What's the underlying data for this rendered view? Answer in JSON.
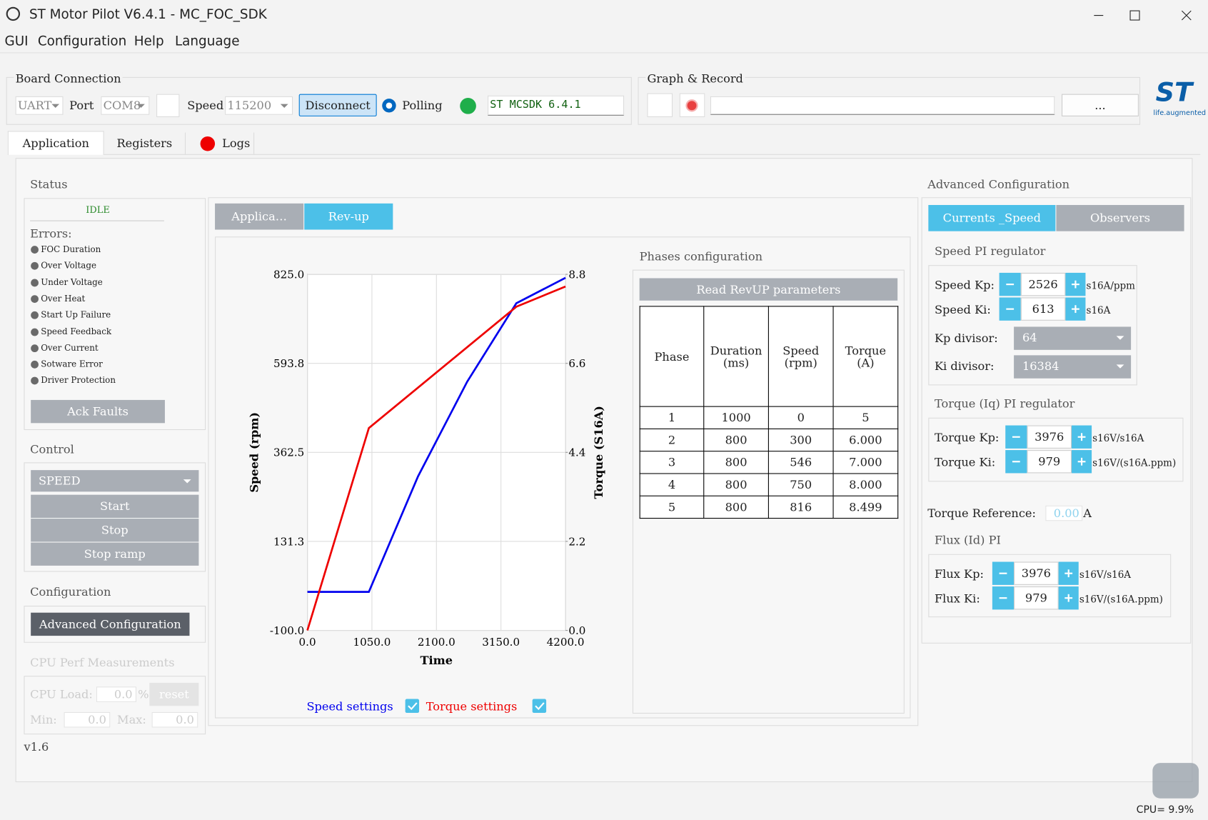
{
  "window": {
    "title": "ST Motor Pilot V6.4.1 - MC_FOC_SDK"
  },
  "menu": [
    "GUI",
    "Configuration",
    "Help",
    "Language"
  ],
  "board_connection": {
    "title": "Board Connection",
    "interface": "UART",
    "port_label": "Port",
    "port": "COM8",
    "speed_label": "Speed",
    "speed": "115200",
    "disconnect": "Disconnect",
    "polling": "Polling",
    "firmware": "ST MCSDK 6.4.1"
  },
  "graph_record": {
    "title": "Graph & Record",
    "browse": "..."
  },
  "logo": {
    "mark": "ST",
    "tagline": "life.augmented"
  },
  "tabs": [
    "Application",
    "Registers",
    "Logs"
  ],
  "status": {
    "title": "Status",
    "state": "IDLE",
    "errors_label": "Errors:",
    "errors": [
      "FOC Duration",
      "Over Voltage",
      "Under Voltage",
      "Over Heat",
      "Start Up Failure",
      "Speed Feedback",
      "Over Current",
      "Sotware Error",
      "Driver Protection"
    ],
    "ack": "Ack Faults"
  },
  "control": {
    "title": "Control",
    "mode": "SPEED",
    "buttons": [
      "Start",
      "Stop",
      "Stop ramp"
    ]
  },
  "configuration": {
    "title": "Configuration",
    "button": "Advanced Configuration"
  },
  "cpu_perf": {
    "title": "CPU Perf Measurements",
    "load_label": "CPU Load:",
    "load": "0.0",
    "unit": "%",
    "reset": "reset",
    "min_label": "Min:",
    "min": "0.0",
    "max_label": "Max:",
    "max": "0.0"
  },
  "version": "v1.6",
  "subtabs": [
    "Applica…",
    "Rev-up"
  ],
  "chart_data": {
    "type": "line",
    "x_label": "Time",
    "y_label": "Speed (rpm)",
    "y2_label": "Torque (S16A)",
    "x": [
      0,
      1000,
      1800,
      2600,
      3400,
      4200
    ],
    "series": [
      {
        "name": "Speed settings",
        "color": "#0000ee",
        "values": [
          0,
          0,
          300,
          546,
          750,
          816
        ]
      },
      {
        "name": "Torque settings",
        "color": "#ee0000",
        "axis": "y2",
        "values": [
          0,
          5,
          6,
          7,
          8,
          8.499
        ]
      }
    ],
    "xlim": [
      0,
      4200
    ],
    "ylim": [
      -100,
      825
    ],
    "y2lim": [
      0,
      8.8
    ],
    "xticks": [
      {
        "value": 0,
        "label": "0.0"
      },
      {
        "value": 1050,
        "label": "1050.0"
      },
      {
        "value": 2100,
        "label": "2100.0"
      },
      {
        "value": 3150,
        "label": "3150.0"
      },
      {
        "value": 4200,
        "label": "4200.0"
      }
    ],
    "yticks": [
      {
        "value": -100,
        "label": "-100.0"
      },
      131.3,
      362.5,
      593.8,
      {
        "value": 825,
        "label": "825.0"
      }
    ],
    "y2ticks": [
      {
        "value": 0,
        "label": "0.0"
      },
      2.2,
      4.4,
      6.6,
      8.8
    ],
    "grid": true
  },
  "phases": {
    "title": "Phases configuration",
    "read": "Read RevUP parameters",
    "header": [
      "Phase",
      "Duration (ms)",
      "Speed (rpm)",
      "Torque (A)"
    ],
    "rows": [
      [
        "1",
        "1000",
        "0",
        "5"
      ],
      [
        "2",
        "800",
        "300",
        "6.000"
      ],
      [
        "3",
        "800",
        "546",
        "7.000"
      ],
      [
        "4",
        "800",
        "750",
        "8.000"
      ],
      [
        "5",
        "800",
        "816",
        "8.499"
      ]
    ]
  },
  "advanced": {
    "title": "Advanced Configuration",
    "tabs": [
      "Currents _Speed",
      "Observers"
    ],
    "speed_pi": {
      "title": "Speed PI regulator",
      "kp_label": "Speed Kp:",
      "kp": "2526",
      "kp_unit": "s16A/ppm",
      "ki_label": "Speed Ki:",
      "ki": "613",
      "ki_unit": "s16A",
      "kp_div_label": "Kp divisor:",
      "kp_div": "64",
      "ki_div_label": "Ki divisor:",
      "ki_div": "16384"
    },
    "torque_pi": {
      "title": "Torque (Iq) PI regulator",
      "kp_label": "Torque Kp:",
      "kp": "3976",
      "kp_unit": "s16V/s16A",
      "ki_label": "Torque Ki:",
      "ki": "979",
      "ki_unit": "s16V/(s16A.ppm)"
    },
    "torque_ref": {
      "label": "Torque Reference:",
      "value": "0.00",
      "unit": "A"
    },
    "flux_pi": {
      "title": "Flux (Id) PI",
      "kp_label": "Flux Kp:",
      "kp": "3976",
      "kp_unit": "s16V/s16A",
      "ki_label": "Flux Ki:",
      "ki": "979",
      "ki_unit": "s16V/(s16A.ppm)"
    }
  },
  "status_bar": {
    "cpu": "CPU= 9.9%"
  }
}
